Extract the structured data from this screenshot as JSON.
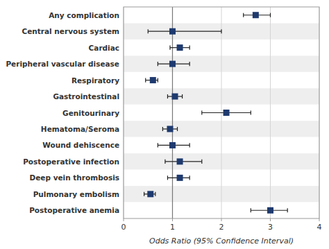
{
  "chart_data": {
    "type": "forest",
    "categories": [
      "Any complication",
      "Central nervous system",
      "Cardiac",
      "Peripheral vascular disease",
      "Respiratory",
      "Gastrointestinal",
      "Genitourinary",
      "Hematoma/Seroma",
      "Wound dehiscence",
      "Postoperative infection",
      "Deep vein thrombosis",
      "Pulmonary embolism",
      "Postoperative anemia"
    ],
    "values": [
      2.7,
      1.0,
      1.15,
      1.0,
      0.6,
      1.05,
      2.1,
      0.95,
      1.0,
      1.15,
      1.15,
      0.55,
      3.0
    ],
    "ci_low": [
      2.45,
      0.5,
      0.95,
      0.7,
      0.45,
      0.9,
      1.6,
      0.8,
      0.7,
      0.85,
      0.9,
      0.42,
      2.6
    ],
    "ci_high": [
      3.0,
      2.0,
      1.35,
      1.35,
      0.7,
      1.2,
      2.6,
      1.1,
      1.35,
      1.6,
      1.35,
      0.65,
      3.35
    ],
    "color": "#1e3a6e",
    "x_label": "Odds Ratio (95% Confidence Interval)",
    "xlim": [
      0,
      4
    ],
    "xticks": [
      0,
      1,
      2,
      3,
      4
    ],
    "reference_line": 1.0,
    "grid": true
  }
}
